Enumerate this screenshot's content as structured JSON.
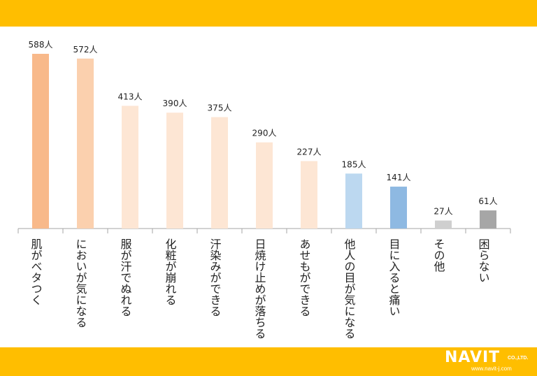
{
  "chart_data": {
    "type": "bar",
    "categories": [
      "肌がベタつく",
      "においが気になる",
      "服が汗でぬれる",
      "化粧が崩れる",
      "汗染みができる",
      "日焼け止めが落ちる",
      "あせもができる",
      "他人の目が気になる",
      "目に入ると痛い",
      "その他",
      "困らない"
    ],
    "values": [
      588,
      572,
      413,
      390,
      375,
      290,
      227,
      185,
      141,
      27,
      61
    ],
    "data_labels": [
      "588人",
      "572人",
      "413人",
      "390人",
      "375人",
      "290人",
      "227人",
      "185人",
      "141人",
      "27人",
      "61人"
    ],
    "bar_colors": [
      "#f8b98a",
      "#fbd0ae",
      "#fde6d4",
      "#fde6d4",
      "#fde6d4",
      "#fde6d4",
      "#fde6d4",
      "#bcd8f0",
      "#8eb9e2",
      "#cfcfcf",
      "#a6a6a6"
    ],
    "ylim": [
      0,
      588
    ],
    "grid": false,
    "legend": "none"
  },
  "logo": {
    "brand": "NAVIT",
    "suffix": "CO.,LTD.",
    "url": "www.navit-j.com"
  },
  "colors": {
    "band": "#ffbe00",
    "axis": "#a6a6a6",
    "text": "#222222"
  }
}
